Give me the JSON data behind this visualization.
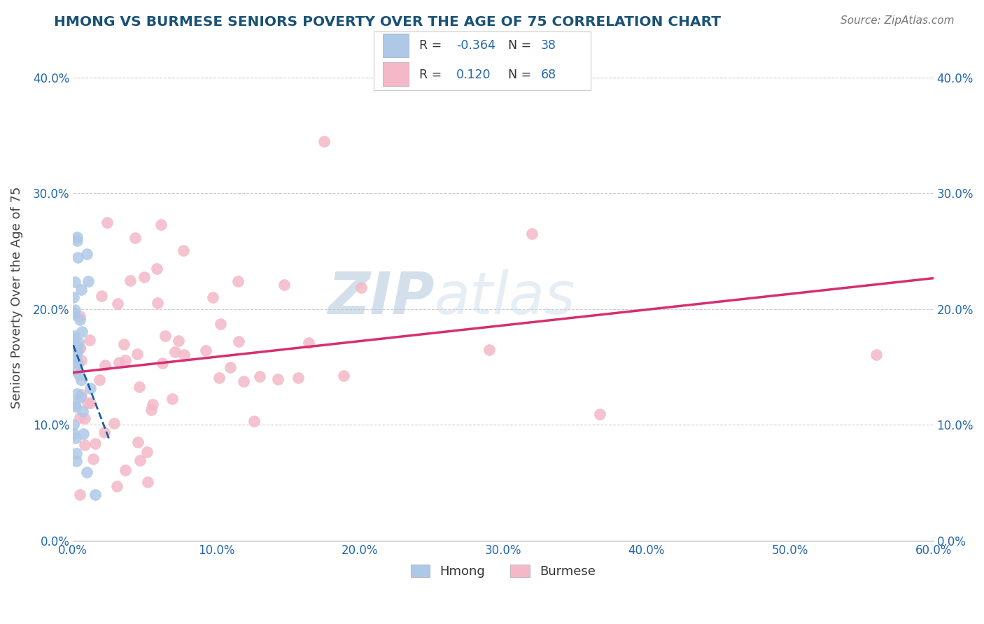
{
  "title": "HMONG VS BURMESE SENIORS POVERTY OVER THE AGE OF 75 CORRELATION CHART",
  "source": "Source: ZipAtlas.com",
  "ylabel": "Seniors Poverty Over the Age of 75",
  "watermark": "ZIPatlas",
  "hmong_R": -0.364,
  "hmong_N": 38,
  "burmese_R": 0.12,
  "burmese_N": 68,
  "hmong_color": "#aec8e8",
  "burmese_color": "#f4b8c8",
  "hmong_line_color": "#1a60a0",
  "burmese_line_color": "#d43070",
  "title_color": "#1a5276",
  "legend_text_color": "#2166ac",
  "axis_label_color": "#2166ac",
  "xlim": [
    0.0,
    0.6
  ],
  "ylim": [
    0.0,
    0.42
  ],
  "xticks": [
    0.0,
    0.1,
    0.2,
    0.3,
    0.4,
    0.5,
    0.6
  ],
  "yticks": [
    0.0,
    0.1,
    0.2,
    0.3,
    0.4
  ],
  "grid_color": "#cccccc",
  "background": "#ffffff"
}
